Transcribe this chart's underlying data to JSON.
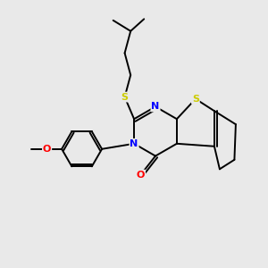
{
  "background_color": "#e9e9e9",
  "bond_color": "#000000",
  "atom_colors": {
    "S": "#cccc00",
    "N": "#0000ff",
    "O": "#ff0000",
    "C": "#000000"
  },
  "figsize": [
    3.0,
    3.0
  ],
  "dpi": 100
}
